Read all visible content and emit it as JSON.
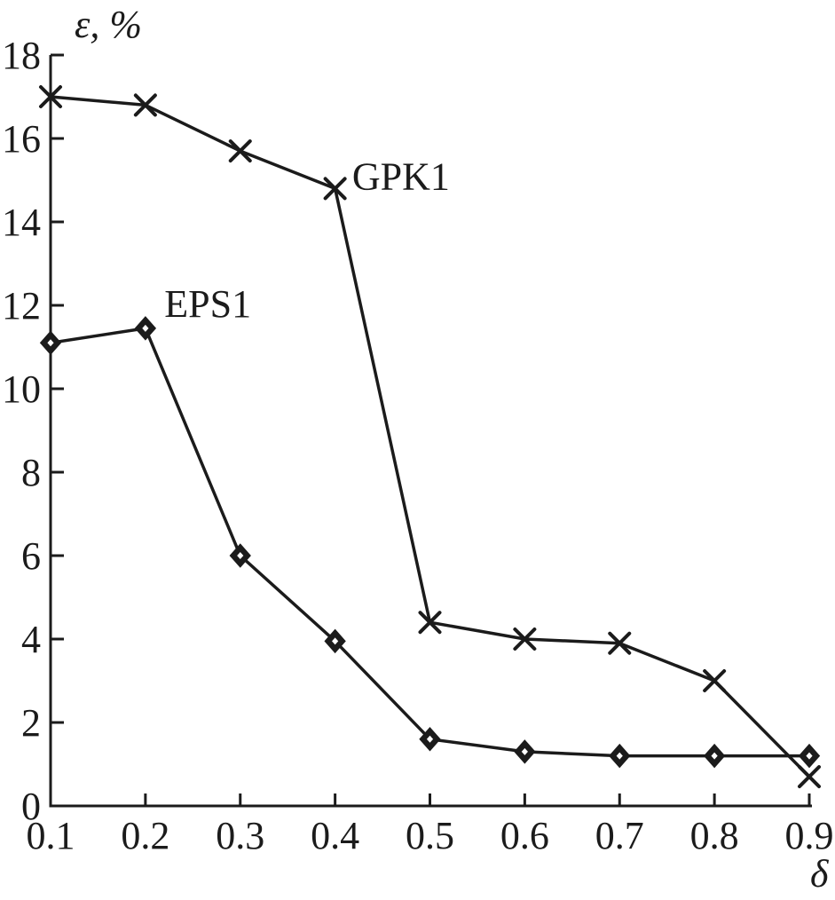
{
  "chart_data": {
    "type": "line",
    "title": "",
    "ylabel": "ε, %",
    "xlabel": "δ",
    "x": [
      0.1,
      0.2,
      0.3,
      0.4,
      0.5,
      0.6,
      0.7,
      0.8,
      0.9
    ],
    "x_tick_labels": [
      "0.1",
      "0.2",
      "0.3",
      "0.4",
      "0.5",
      "0.6",
      "0.7",
      "0.8",
      "0.9"
    ],
    "y_ticks": [
      0,
      2,
      4,
      6,
      8,
      10,
      12,
      14,
      16,
      18
    ],
    "y_tick_labels": [
      "0",
      "2",
      "4",
      "6",
      "8",
      "10",
      "12",
      "14",
      "16",
      "18"
    ],
    "xlim": [
      0.1,
      0.9
    ],
    "ylim": [
      0,
      18
    ],
    "grid": false,
    "legend": "inline-annotations",
    "series": [
      {
        "name": "GPK1",
        "marker": "x",
        "values": [
          17.0,
          16.8,
          15.7,
          14.8,
          4.4,
          4.0,
          3.9,
          3.0,
          0.7
        ],
        "label_at": {
          "x": 0.418,
          "y": 14.78
        }
      },
      {
        "name": "EPS1",
        "marker": "diamond",
        "values": [
          11.1,
          11.45,
          6.0,
          3.95,
          1.6,
          1.3,
          1.2,
          1.2,
          1.2
        ],
        "label_at": {
          "x": 0.22,
          "y": 11.72
        }
      }
    ],
    "colors": {
      "line": "#1b1b1b",
      "background": "#ffffff"
    }
  }
}
